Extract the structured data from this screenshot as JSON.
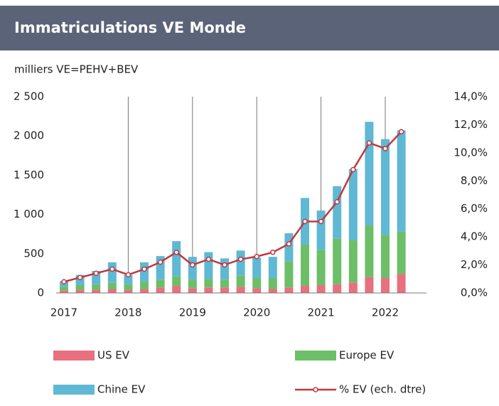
{
  "chart_data": {
    "type": "bar",
    "title": "Immatriculations VE Monde",
    "subtitle": "milliers VE=PEHV+BEV",
    "categories": [
      "2017",
      null,
      null,
      null,
      "2018",
      null,
      null,
      null,
      "2019",
      null,
      null,
      null,
      "2020",
      null,
      null,
      null,
      "2021",
      null,
      null,
      null,
      "2022",
      null
    ],
    "stacked": true,
    "grid": "vertical",
    "legend": "bottom",
    "series": [
      {
        "name": "US EV",
        "type": "bar",
        "color": "#e9707f",
        "values": [
          30,
          40,
          40,
          50,
          40,
          50,
          70,
          90,
          60,
          70,
          70,
          80,
          60,
          50,
          70,
          90,
          100,
          110,
          130,
          200,
          190,
          240
        ]
      },
      {
        "name": "Europe EV",
        "type": "bar",
        "color": "#6cbf68",
        "values": [
          50,
          60,
          70,
          80,
          70,
          90,
          100,
          120,
          110,
          110,
          100,
          140,
          130,
          140,
          330,
          530,
          450,
          580,
          540,
          660,
          550,
          540
        ]
      },
      {
        "name": "Chine EV",
        "type": "bar",
        "color": "#5fb8d4",
        "values": [
          70,
          130,
          170,
          260,
          120,
          250,
          300,
          450,
          290,
          340,
          270,
          320,
          260,
          270,
          360,
          590,
          500,
          670,
          910,
          1320,
          1220,
          1290
        ]
      },
      {
        "name": "% EV (ech. dtre)",
        "type": "line",
        "axis": "y2",
        "color": "#c2383f",
        "values": [
          0.8,
          1.1,
          1.4,
          1.7,
          1.3,
          1.7,
          2.2,
          2.9,
          2.0,
          2.4,
          2.0,
          2.4,
          2.6,
          2.9,
          3.5,
          5.1,
          5.1,
          6.5,
          8.8,
          10.7,
          10.3,
          11.5
        ]
      }
    ],
    "ylim": [
      0,
      2500
    ],
    "yticks": [
      0,
      500,
      {
        "value": 1000,
        "label": "1 000"
      },
      {
        "value": 1500,
        "label": "1 500"
      },
      {
        "value": 2000,
        "label": "2 000"
      },
      {
        "value": 2500,
        "label": "2 500"
      }
    ],
    "y2lim": [
      0,
      14
    ],
    "y2ticks": [
      {
        "value": 0,
        "label": "0,0%"
      },
      {
        "value": 2,
        "label": "2,0%"
      },
      {
        "value": 4,
        "label": "4,0%"
      },
      {
        "value": 6,
        "label": "6,0%"
      },
      {
        "value": 8,
        "label": "8,0%"
      },
      {
        "value": 10,
        "label": "10,0%"
      },
      {
        "value": 12,
        "label": "12,0%"
      },
      {
        "value": 14,
        "label": "14,0%"
      }
    ]
  }
}
